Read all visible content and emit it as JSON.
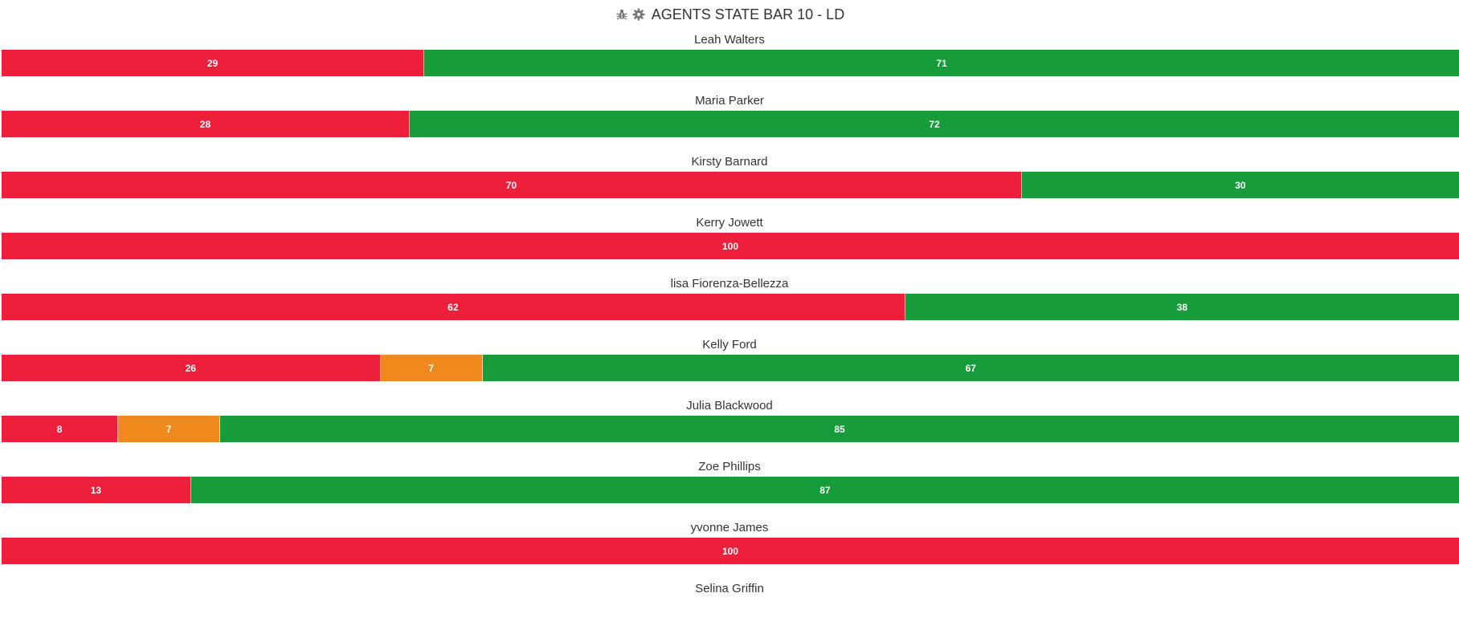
{
  "header": {
    "title": "AGENTS STATE BAR 10 - LD",
    "icons": [
      "bug-icon",
      "gear-icon"
    ]
  },
  "colors": {
    "red": "#ee1f3a",
    "orange": "#f0891d",
    "green": "#179c3b"
  },
  "chart_data": {
    "type": "bar",
    "orientation": "horizontal",
    "stacked": true,
    "scale": "percent",
    "categories": [
      "Leah Walters",
      "Maria Parker",
      "Kirsty Barnard",
      "Kerry Jowett",
      "lisa Fiorenza-Bellezza",
      "Kelly Ford",
      "Julia Blackwood",
      "Zoe Phillips",
      "yvonne James",
      "Selina Griffin"
    ],
    "series": [
      {
        "color": "#ee1f3a",
        "values": [
          29,
          28,
          70,
          100,
          62,
          26,
          8,
          13,
          100,
          null
        ]
      },
      {
        "color": "#f0891d",
        "values": [
          0,
          0,
          0,
          0,
          0,
          7,
          7,
          0,
          0,
          null
        ]
      },
      {
        "color": "#179c3b",
        "values": [
          71,
          72,
          30,
          0,
          38,
          67,
          85,
          87,
          0,
          null
        ]
      }
    ]
  }
}
